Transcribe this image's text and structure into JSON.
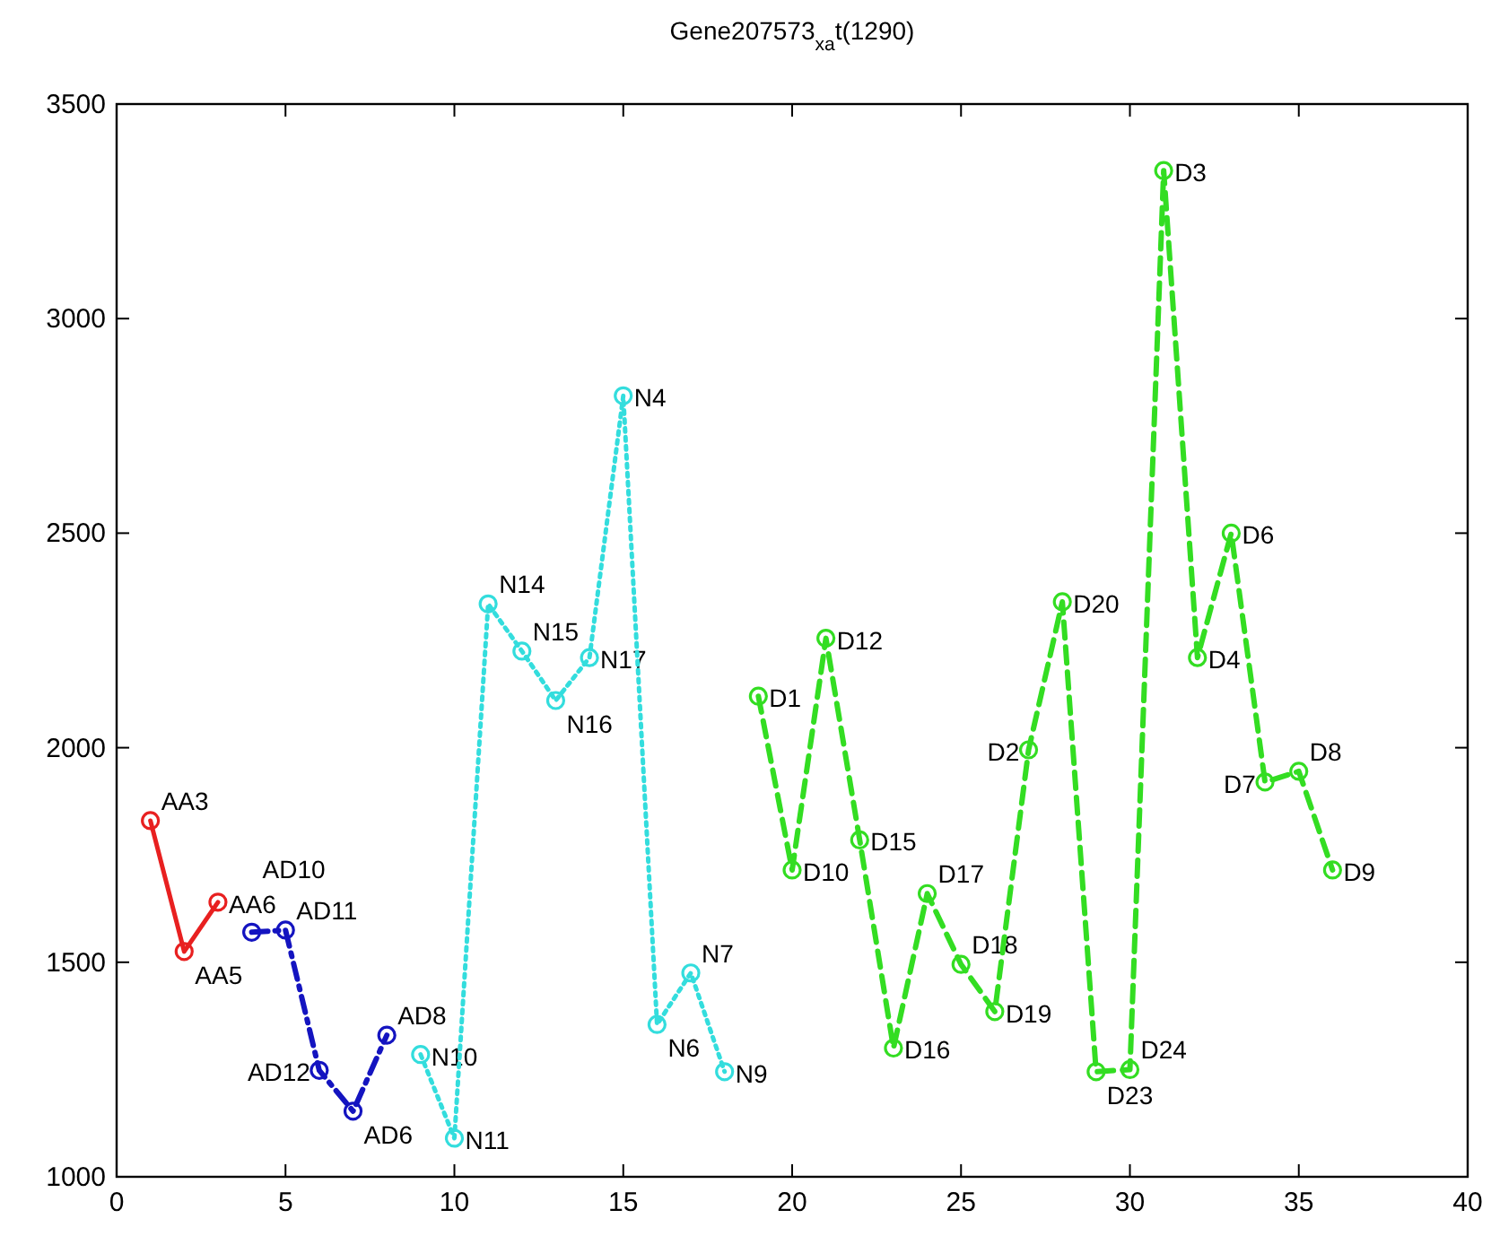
{
  "chart_data": {
    "type": "line",
    "title": "Gene207573$_{xa}$t(1290)",
    "xlim": [
      0,
      40
    ],
    "ylim": [
      1000,
      3500
    ],
    "xticks": [
      0,
      5,
      10,
      15,
      20,
      25,
      30,
      35,
      40
    ],
    "yticks": [
      1000,
      1500,
      2000,
      2500,
      3000,
      3500
    ],
    "grid": false,
    "marker": "circle",
    "series": [
      {
        "color": "#e82020",
        "line_style": "solid",
        "x": [
          1,
          2,
          3
        ],
        "values": [
          1830,
          1525,
          1640
        ]
      },
      {
        "color": "#1414c0",
        "line_style": "dashdot",
        "x": [
          4,
          5,
          6,
          7,
          8
        ],
        "values": [
          1570,
          1575,
          1248,
          1153,
          1330
        ]
      },
      {
        "color": "#33dddd",
        "line_style": "dotted",
        "x": [
          9,
          10,
          11,
          12,
          13,
          14,
          15,
          16,
          17,
          18
        ],
        "values": [
          1285,
          1090,
          2335,
          2225,
          2110,
          2210,
          2820,
          1355,
          1475,
          1245
        ]
      },
      {
        "color": "#33dd22",
        "line_style": "dashed",
        "x": [
          19,
          20,
          21,
          22,
          23,
          24,
          25,
          26,
          27,
          28,
          29,
          30,
          31,
          32,
          33,
          34,
          35,
          36
        ],
        "values": [
          2120,
          1715,
          2255,
          1785,
          1300,
          1660,
          1495,
          1385,
          1995,
          2340,
          1245,
          1250,
          3345,
          2210,
          2500,
          1920,
          1945,
          1715
        ]
      }
    ],
    "annotations": [
      {
        "text": "AA3",
        "x": 1,
        "y": 1830
      },
      {
        "text": "AA5",
        "x": 2,
        "y": 1525
      },
      {
        "text": "AA6",
        "x": 3,
        "y": 1640
      },
      {
        "text": "AD10",
        "x": 4,
        "y": 1570
      },
      {
        "text": "AD11",
        "x": 5,
        "y": 1575
      },
      {
        "text": "AD12",
        "x": 6,
        "y": 1248
      },
      {
        "text": "AD6",
        "x": 7,
        "y": 1153
      },
      {
        "text": "AD8",
        "x": 8,
        "y": 1330
      },
      {
        "text": "N10",
        "x": 9,
        "y": 1285
      },
      {
        "text": "N11",
        "x": 10,
        "y": 1090
      },
      {
        "text": "N14",
        "x": 11,
        "y": 2335
      },
      {
        "text": "N15",
        "x": 12,
        "y": 2225
      },
      {
        "text": "N16",
        "x": 13,
        "y": 2110
      },
      {
        "text": "N17",
        "x": 14,
        "y": 2210
      },
      {
        "text": "N4",
        "x": 15,
        "y": 2820
      },
      {
        "text": "N6",
        "x": 16,
        "y": 1355
      },
      {
        "text": "N7",
        "x": 17,
        "y": 1475
      },
      {
        "text": "N9",
        "x": 18,
        "y": 1245
      },
      {
        "text": "D1",
        "x": 19,
        "y": 2120
      },
      {
        "text": "D10",
        "x": 20,
        "y": 1715
      },
      {
        "text": "D12",
        "x": 21,
        "y": 2255
      },
      {
        "text": "D15",
        "x": 22,
        "y": 1785
      },
      {
        "text": "D16",
        "x": 23,
        "y": 1300
      },
      {
        "text": "D17",
        "x": 24,
        "y": 1660
      },
      {
        "text": "D18",
        "x": 25,
        "y": 1495
      },
      {
        "text": "D19",
        "x": 26,
        "y": 1385
      },
      {
        "text": "D2",
        "x": 27,
        "y": 1995
      },
      {
        "text": "D20",
        "x": 28,
        "y": 2340
      },
      {
        "text": "D23",
        "x": 29,
        "y": 1245
      },
      {
        "text": "D24",
        "x": 30,
        "y": 1250
      },
      {
        "text": "D3",
        "x": 31,
        "y": 3345
      },
      {
        "text": "D4",
        "x": 32,
        "y": 2210
      },
      {
        "text": "D6",
        "x": 33,
        "y": 2500
      },
      {
        "text": "D7",
        "x": 34,
        "y": 1920
      },
      {
        "text": "D8",
        "x": 35,
        "y": 1945
      },
      {
        "text": "D9",
        "x": 36,
        "y": 1715
      }
    ]
  }
}
